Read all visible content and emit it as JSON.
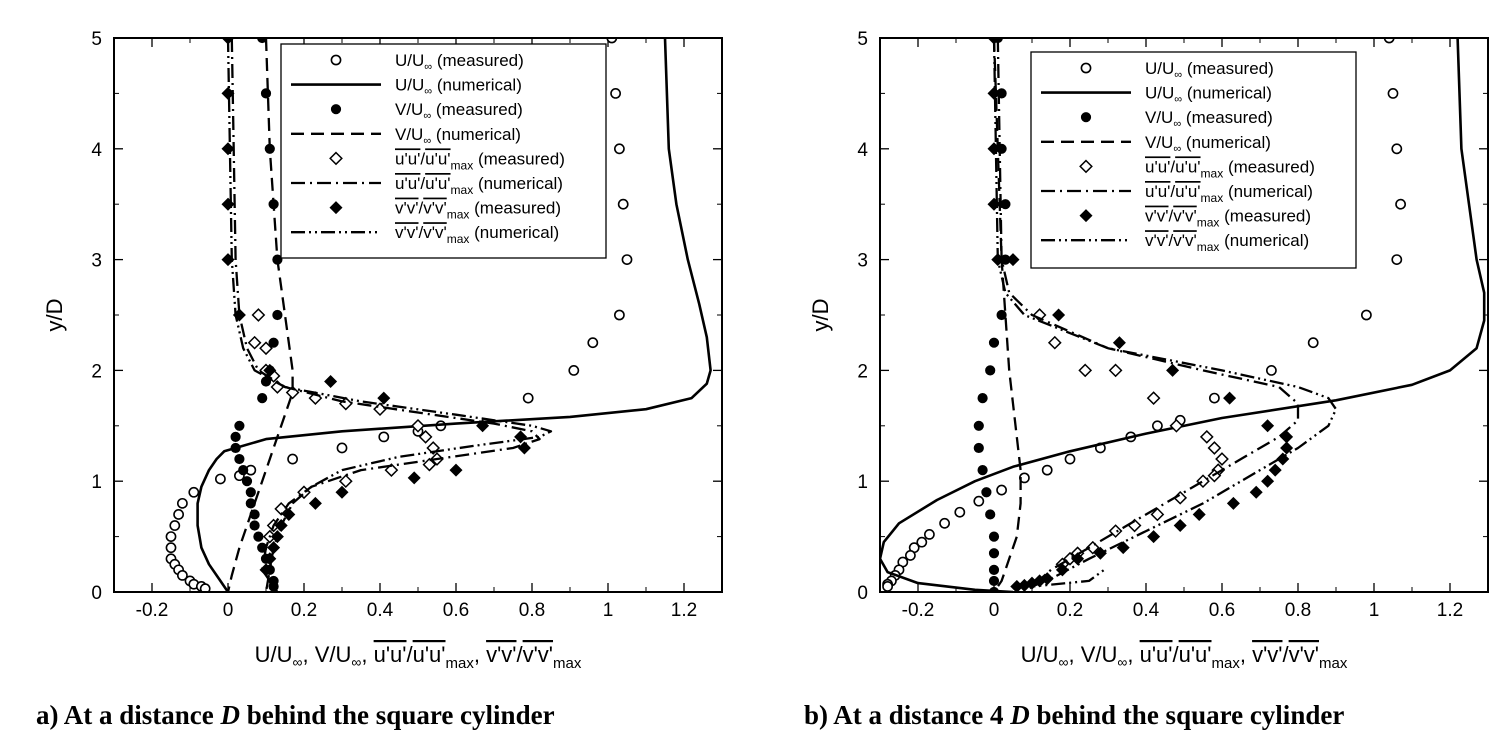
{
  "chart_data": [
    {
      "type": "scatter",
      "panel": "a",
      "caption": {
        "prefix": "a) At a distance ",
        "italic": "D",
        "suffix": " behind the square cylinder"
      },
      "ylabel": "y/D",
      "xlim": [
        -0.3,
        1.3
      ],
      "ylim": [
        0,
        5
      ],
      "xticks": [
        -0.2,
        0,
        0.2,
        0.4,
        0.6,
        0.8,
        1,
        1.2
      ],
      "xtick_labels": [
        "-0.2",
        "0",
        "0.2",
        "0.4",
        "0.6",
        "0.8",
        "1",
        "1.2"
      ],
      "yticks": [
        0,
        1,
        2,
        3,
        4,
        5
      ],
      "ytick_labels": [
        "0",
        "1",
        "2",
        "3",
        "4",
        "5"
      ],
      "legend_position": "top-right",
      "series": [
        {
          "name": "U/U∞ (measured)",
          "kind": "open-circle",
          "x": [
            1.01,
            1.02,
            1.03,
            1.04,
            1.05,
            1.03,
            0.96,
            0.91,
            0.79,
            0.56,
            0.5,
            0.41,
            0.3,
            0.17,
            0.06,
            0.03,
            -0.02,
            -0.09,
            -0.12,
            -0.13,
            -0.14,
            -0.15,
            -0.15,
            -0.15,
            -0.14,
            -0.13,
            -0.12,
            -0.1,
            -0.09,
            -0.07,
            -0.06
          ],
          "y": [
            5.0,
            4.5,
            4.0,
            3.5,
            3.0,
            2.5,
            2.25,
            2.0,
            1.75,
            1.5,
            1.45,
            1.4,
            1.3,
            1.2,
            1.1,
            1.05,
            1.02,
            0.9,
            0.8,
            0.7,
            0.6,
            0.5,
            0.4,
            0.3,
            0.25,
            0.2,
            0.15,
            0.1,
            0.07,
            0.05,
            0.03
          ]
        },
        {
          "name": "U/U∞ (numerical)",
          "kind": "solid",
          "x": [
            1.15,
            1.16,
            1.18,
            1.21,
            1.24,
            1.26,
            1.27,
            1.26,
            1.22,
            1.1,
            0.9,
            0.6,
            0.3,
            0.1,
            -0.01,
            -0.03,
            -0.05,
            -0.07,
            -0.08,
            -0.08,
            -0.07,
            -0.05,
            -0.02,
            0.0
          ],
          "y": [
            5.0,
            4.0,
            3.5,
            3.0,
            2.6,
            2.3,
            2.0,
            1.88,
            1.75,
            1.65,
            1.58,
            1.52,
            1.45,
            1.38,
            1.27,
            1.2,
            1.1,
            0.95,
            0.8,
            0.6,
            0.4,
            0.25,
            0.1,
            0.0
          ]
        },
        {
          "name": "V/U∞ (measured)",
          "kind": "filled-circle",
          "x": [
            0.09,
            0.1,
            0.11,
            0.12,
            0.13,
            0.13,
            0.12,
            0.11,
            0.1,
            0.09,
            0.03,
            0.02,
            0.02,
            0.03,
            0.04,
            0.05,
            0.06,
            0.06,
            0.07,
            0.07,
            0.08,
            0.09,
            0.1,
            0.11,
            0.12,
            0.12
          ],
          "y": [
            5.0,
            4.5,
            4.0,
            3.5,
            3.0,
            2.5,
            2.25,
            2.0,
            1.9,
            1.75,
            1.5,
            1.4,
            1.3,
            1.2,
            1.1,
            1.0,
            0.9,
            0.8,
            0.7,
            0.6,
            0.5,
            0.4,
            0.3,
            0.2,
            0.1,
            0.05
          ]
        },
        {
          "name": "V/U∞ (numerical)",
          "kind": "dashed",
          "x": [
            0.1,
            0.11,
            0.13,
            0.15,
            0.17,
            0.17,
            0.15,
            0.12,
            0.09,
            0.06,
            0.03,
            0.01,
            0.0
          ],
          "y": [
            5.0,
            4.0,
            3.0,
            2.5,
            2.0,
            1.8,
            1.6,
            1.3,
            1.0,
            0.7,
            0.4,
            0.15,
            0.0
          ]
        },
        {
          "name": "u'u'/u'u'max (measured)",
          "kind": "open-diamond",
          "x": [
            0.08,
            0.07,
            0.1,
            0.1,
            0.12,
            0.13,
            0.17,
            0.23,
            0.31,
            0.4,
            0.5,
            0.52,
            0.54,
            0.55,
            0.53,
            0.43,
            0.31,
            0.2,
            0.14,
            0.12,
            0.11
          ],
          "y": [
            2.5,
            2.25,
            2.2,
            2.0,
            1.95,
            1.85,
            1.8,
            1.75,
            1.7,
            1.65,
            1.5,
            1.4,
            1.3,
            1.2,
            1.15,
            1.1,
            1.0,
            0.9,
            0.75,
            0.6,
            0.5
          ]
        },
        {
          "name": "u'u'/u'u'max (numerical)",
          "kind": "dash-dot",
          "x": [
            0.01,
            0.02,
            0.03,
            0.05,
            0.08,
            0.15,
            0.3,
            0.5,
            0.7,
            0.8,
            0.82,
            0.75,
            0.55,
            0.35,
            0.22,
            0.16,
            0.12,
            0.1,
            0.09,
            0.11,
            0.13
          ],
          "y": [
            5.0,
            3.0,
            2.5,
            2.2,
            2.0,
            1.85,
            1.72,
            1.62,
            1.52,
            1.45,
            1.38,
            1.3,
            1.2,
            1.1,
            0.95,
            0.8,
            0.6,
            0.4,
            0.2,
            0.1,
            0.0
          ]
        },
        {
          "name": "v'v'/v'v'max (measured)",
          "kind": "filled-diamond",
          "x": [
            0.0,
            0.0,
            0.0,
            0.0,
            0.0,
            0.03,
            0.11,
            0.27,
            0.41,
            0.67,
            0.77,
            0.78,
            0.6,
            0.49,
            0.3,
            0.23,
            0.16,
            0.14,
            0.13,
            0.12,
            0.11,
            0.1
          ],
          "y": [
            5.0,
            4.5,
            4.0,
            3.5,
            3.0,
            2.5,
            2.0,
            1.9,
            1.75,
            1.5,
            1.4,
            1.3,
            1.1,
            1.03,
            0.9,
            0.8,
            0.7,
            0.6,
            0.5,
            0.4,
            0.3,
            0.2
          ]
        },
        {
          "name": "v'v'/v'v'max (numerical)",
          "kind": "dash-dot-dot",
          "x": [
            0.0,
            0.01,
            0.02,
            0.04,
            0.07,
            0.15,
            0.35,
            0.6,
            0.8,
            0.85,
            0.82,
            0.65,
            0.45,
            0.3,
            0.22,
            0.17,
            0.14,
            0.12,
            0.11,
            0.1
          ],
          "y": [
            5.0,
            3.0,
            2.5,
            2.2,
            2.0,
            1.85,
            1.72,
            1.6,
            1.5,
            1.45,
            1.4,
            1.32,
            1.22,
            1.1,
            0.95,
            0.8,
            0.6,
            0.4,
            0.2,
            0.0
          ]
        }
      ]
    },
    {
      "type": "scatter",
      "panel": "b",
      "caption": {
        "prefix": "b) At a distance 4 ",
        "italic": "D",
        "suffix": " behind the square cylinder"
      },
      "ylabel": "y/D",
      "xlim": [
        -0.3,
        1.3
      ],
      "ylim": [
        0,
        5
      ],
      "xticks": [
        -0.2,
        0,
        0.2,
        0.4,
        0.6,
        0.8,
        1,
        1.2
      ],
      "xtick_labels": [
        "-0.2",
        "0",
        "0.2",
        "0.4",
        "0.6",
        "0.8",
        "1",
        "1.2"
      ],
      "yticks": [
        0,
        1,
        2,
        3,
        4,
        5
      ],
      "ytick_labels": [
        "0",
        "1",
        "2",
        "3",
        "4",
        "5"
      ],
      "legend_position": "top-right",
      "series": [
        {
          "name": "U/U∞ (measured)",
          "kind": "open-circle",
          "x": [
            1.04,
            1.05,
            1.06,
            1.07,
            1.06,
            0.98,
            0.84,
            0.73,
            0.58,
            0.49,
            0.43,
            0.36,
            0.28,
            0.2,
            0.14,
            0.08,
            0.02,
            -0.04,
            -0.09,
            -0.13,
            -0.17,
            -0.19,
            -0.21,
            -0.22,
            -0.24,
            -0.25,
            -0.26,
            -0.27,
            -0.28,
            -0.28
          ],
          "y": [
            5.0,
            4.5,
            4.0,
            3.5,
            3.0,
            2.5,
            2.25,
            2.0,
            1.75,
            1.55,
            1.5,
            1.4,
            1.3,
            1.2,
            1.1,
            1.03,
            0.92,
            0.82,
            0.72,
            0.62,
            0.52,
            0.45,
            0.4,
            0.33,
            0.27,
            0.2,
            0.15,
            0.1,
            0.07,
            0.05
          ]
        },
        {
          "name": "U/U∞ (numerical)",
          "kind": "solid",
          "x": [
            1.22,
            1.23,
            1.25,
            1.27,
            1.29,
            1.29,
            1.27,
            1.2,
            1.1,
            0.9,
            0.6,
            0.4,
            0.2,
            0.05,
            -0.05,
            -0.15,
            -0.25,
            -0.29,
            -0.3,
            -0.28,
            -0.2,
            -0.05,
            0.05
          ],
          "y": [
            5.0,
            4.0,
            3.5,
            3.0,
            2.7,
            2.45,
            2.2,
            2.0,
            1.87,
            1.73,
            1.57,
            1.43,
            1.27,
            1.13,
            1.0,
            0.83,
            0.62,
            0.45,
            0.3,
            0.18,
            0.08,
            0.02,
            0.0
          ]
        },
        {
          "name": "V/U∞ (measured)",
          "kind": "filled-circle",
          "x": [
            0.01,
            0.02,
            0.02,
            0.03,
            0.03,
            0.02,
            0.0,
            -0.01,
            -0.03,
            -0.04,
            -0.04,
            -0.03,
            -0.02,
            -0.01,
            0.0,
            0.0,
            0.0,
            0.0,
            0.0
          ],
          "y": [
            5.0,
            4.5,
            4.0,
            3.5,
            3.0,
            2.5,
            2.25,
            2.0,
            1.75,
            1.5,
            1.3,
            1.1,
            0.9,
            0.7,
            0.5,
            0.35,
            0.2,
            0.1,
            0.0
          ]
        },
        {
          "name": "V/U∞ (numerical)",
          "kind": "dashed",
          "x": [
            0.0,
            0.01,
            0.02,
            0.03,
            0.04,
            0.05,
            0.06,
            0.07,
            0.07,
            0.06,
            0.04,
            0.02,
            0.0
          ],
          "y": [
            5.0,
            4.0,
            3.0,
            2.5,
            2.0,
            1.7,
            1.4,
            1.1,
            0.8,
            0.5,
            0.3,
            0.1,
            0.0
          ]
        },
        {
          "name": "u'u'/u'u'max (measured)",
          "kind": "open-diamond",
          "x": [
            0.12,
            0.16,
            0.24,
            0.32,
            0.42,
            0.48,
            0.56,
            0.58,
            0.6,
            0.59,
            0.58,
            0.55,
            0.49,
            0.43,
            0.37,
            0.32,
            0.26,
            0.22,
            0.2,
            0.18
          ],
          "y": [
            2.5,
            2.25,
            2.0,
            2.0,
            1.75,
            1.5,
            1.4,
            1.3,
            1.2,
            1.1,
            1.05,
            1.0,
            0.85,
            0.7,
            0.6,
            0.55,
            0.4,
            0.35,
            0.3,
            0.25
          ]
        },
        {
          "name": "u'u'/u'u'max (numerical)",
          "kind": "dash-dot",
          "x": [
            0.01,
            0.02,
            0.04,
            0.1,
            0.3,
            0.55,
            0.75,
            0.8,
            0.8,
            0.75,
            0.65,
            0.55,
            0.45,
            0.35,
            0.25,
            0.15,
            0.1,
            0.08
          ],
          "y": [
            5.0,
            3.0,
            2.7,
            2.5,
            2.2,
            2.0,
            1.85,
            1.7,
            1.55,
            1.4,
            1.2,
            1.0,
            0.8,
            0.6,
            0.4,
            0.2,
            0.05,
            0.0
          ]
        },
        {
          "name": "v'v'/v'v'max (measured)",
          "kind": "filled-diamond",
          "x": [
            0.0,
            0.0,
            0.0,
            0.0,
            0.01,
            0.05,
            0.17,
            0.33,
            0.47,
            0.62,
            0.72,
            0.77,
            0.77,
            0.76,
            0.74,
            0.72,
            0.69,
            0.63,
            0.54,
            0.49,
            0.42,
            0.34,
            0.28,
            0.22,
            0.18,
            0.14,
            0.12,
            0.1,
            0.08,
            0.06
          ],
          "y": [
            5.0,
            4.5,
            4.0,
            3.5,
            3.0,
            3.0,
            2.5,
            2.25,
            2.0,
            1.75,
            1.5,
            1.4,
            1.3,
            1.2,
            1.1,
            1.0,
            0.9,
            0.8,
            0.7,
            0.6,
            0.5,
            0.4,
            0.35,
            0.3,
            0.2,
            0.12,
            0.1,
            0.08,
            0.06,
            0.05
          ]
        },
        {
          "name": "v'v'/v'v'max (numerical)",
          "kind": "dash-dot-dot",
          "x": [
            0.0,
            0.01,
            0.03,
            0.08,
            0.3,
            0.6,
            0.8,
            0.88,
            0.9,
            0.88,
            0.8,
            0.7,
            0.55,
            0.4,
            0.25,
            0.15,
            0.1,
            0.25,
            0.29
          ],
          "y": [
            5.0,
            3.0,
            2.7,
            2.5,
            2.2,
            2.0,
            1.85,
            1.75,
            1.65,
            1.5,
            1.3,
            1.1,
            0.8,
            0.55,
            0.3,
            0.12,
            0.05,
            0.1,
            0.2
          ]
        }
      ]
    }
  ]
}
